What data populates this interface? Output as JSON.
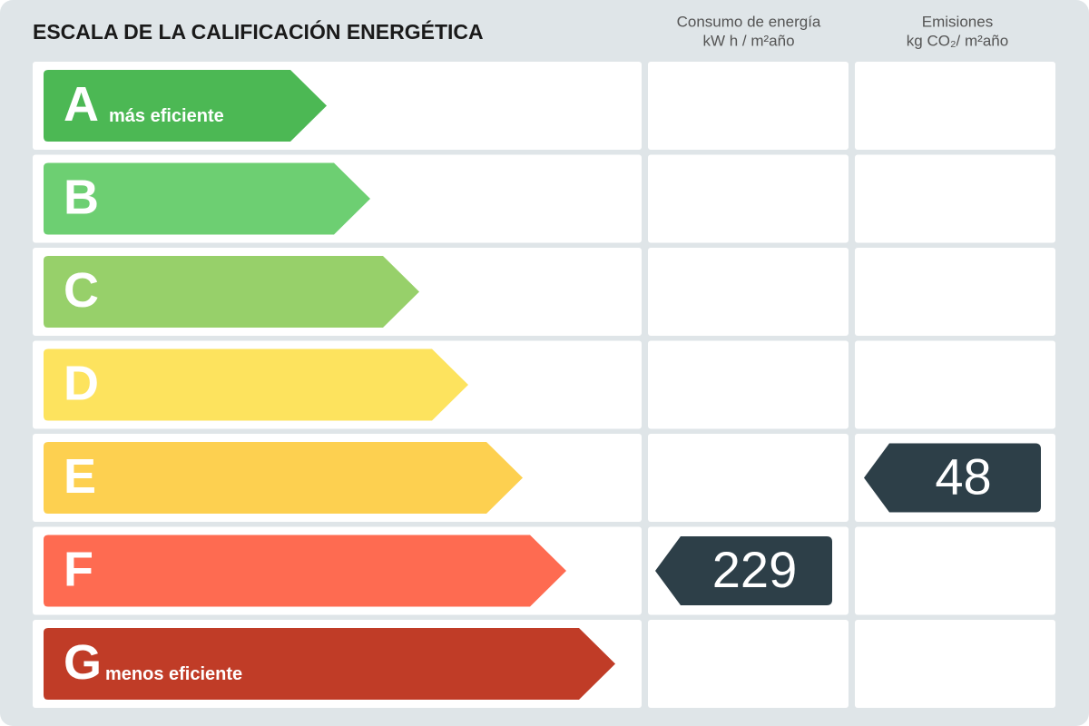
{
  "header": {
    "title": "ESCALA DE LA CALIFICACIÓN ENERGÉTICA",
    "consumo": {
      "line1": "Consumo de energía",
      "line2": "kW h / m²año"
    },
    "emisiones": {
      "line1": "Emisiones",
      "line2": "kg CO₂/ m²año"
    }
  },
  "rows": [
    {
      "letter": "A",
      "label": "más eficiente",
      "color": "#4cb854"
    },
    {
      "letter": "B",
      "color": "#6dcf72"
    },
    {
      "letter": "C",
      "color": "#97d06a"
    },
    {
      "letter": "D",
      "color": "#fde35e"
    },
    {
      "letter": "E",
      "color": "#fdd050",
      "emisiones": 48
    },
    {
      "letter": "F",
      "color": "#fe6b51",
      "consumo": 229
    },
    {
      "letter": "G",
      "label": "menos eficiente",
      "color": "#c03c27"
    }
  ]
}
